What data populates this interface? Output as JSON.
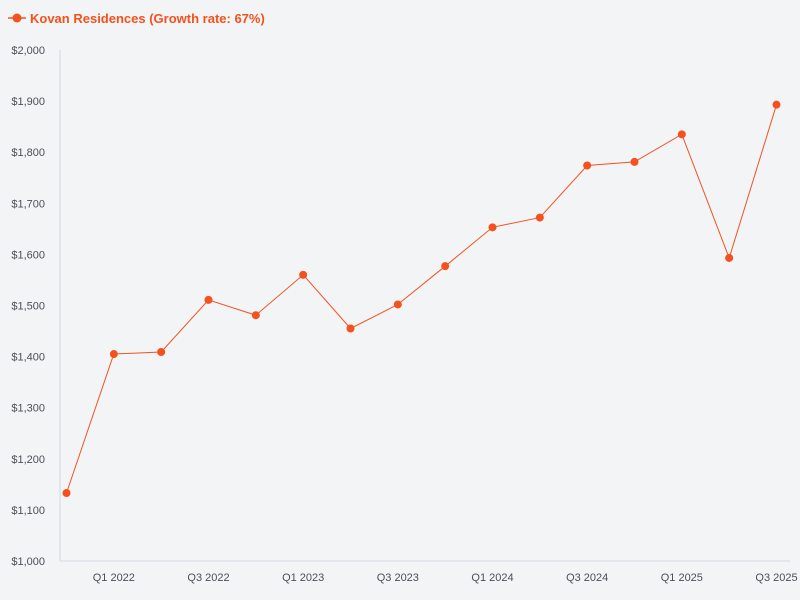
{
  "chart_data": {
    "type": "line",
    "legend_position": "top-left",
    "grid": false,
    "series": [
      {
        "name": "Kovan Residences (Growth rate: 67%)",
        "color": "#f4511e",
        "values": [
          1133,
          1405,
          1409,
          1511,
          1481,
          1560,
          1455,
          1502,
          1577,
          1653,
          1672,
          1774,
          1781,
          1835,
          1593,
          1893
        ]
      }
    ],
    "x": [
      "Q4 2021",
      "Q1 2022",
      "Q2 2022",
      "Q3 2022",
      "Q4 2022",
      "Q1 2023",
      "Q2 2023",
      "Q3 2023",
      "Q4 2023",
      "Q1 2024",
      "Q2 2024",
      "Q3 2024",
      "Q4 2024",
      "Q1 2025",
      "Q2 2025",
      "Q3 2025"
    ],
    "x_tick_labels": [
      "Q1 2022",
      "Q3 2022",
      "Q1 2023",
      "Q3 2023",
      "Q1 2024",
      "Q3 2024",
      "Q1 2025",
      "Q3 2025"
    ],
    "ylim": [
      1000,
      2000
    ],
    "y_ticks": [
      1000,
      1100,
      1200,
      1300,
      1400,
      1500,
      1600,
      1700,
      1800,
      1900,
      2000
    ],
    "y_tick_labels": [
      "$1,000",
      "$1,100",
      "$1,200",
      "$1,300",
      "$1,400",
      "$1,500",
      "$1,600",
      "$1,700",
      "$1,800",
      "$1,900",
      "$2,000"
    ],
    "xlabel": "",
    "ylabel": ""
  }
}
